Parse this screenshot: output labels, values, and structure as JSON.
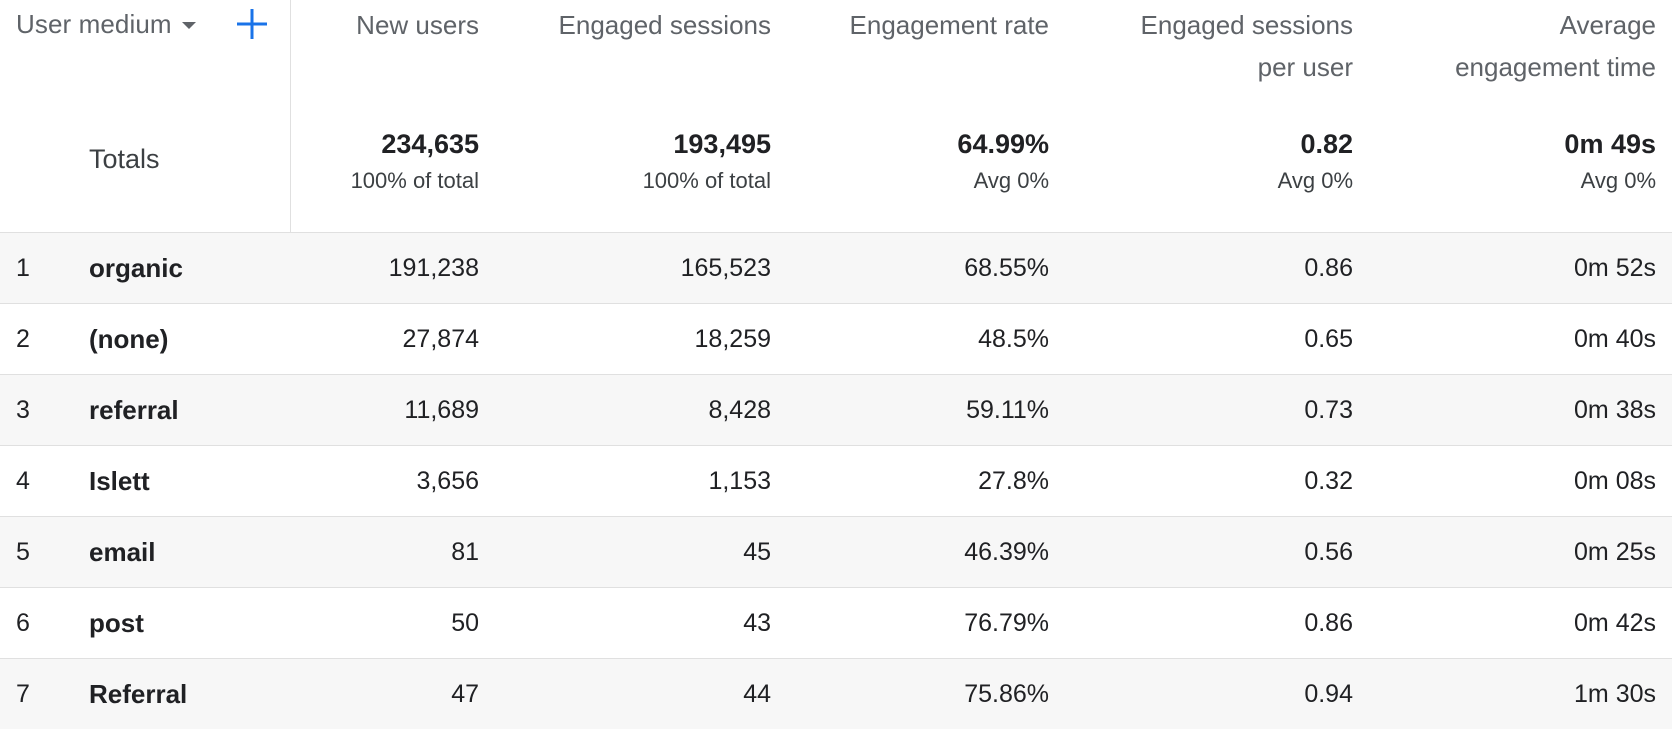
{
  "dimension": {
    "label": "User medium"
  },
  "columns": [
    {
      "key": "new_users",
      "lines": [
        "New users"
      ]
    },
    {
      "key": "engaged_sessions",
      "lines": [
        "Engaged sessions"
      ]
    },
    {
      "key": "engagement_rate",
      "lines": [
        "Engagement rate"
      ]
    },
    {
      "key": "engaged_sessions_per_user",
      "lines": [
        "Engaged sessions",
        "per user"
      ]
    },
    {
      "key": "avg_engagement_time",
      "lines": [
        "Average",
        "engagement time"
      ]
    }
  ],
  "totals": {
    "label": "Totals",
    "values": [
      {
        "value": "234,635",
        "sub": "100% of total"
      },
      {
        "value": "193,495",
        "sub": "100% of total"
      },
      {
        "value": "64.99%",
        "sub": "Avg 0%"
      },
      {
        "value": "0.82",
        "sub": "Avg 0%"
      },
      {
        "value": "0m 49s",
        "sub": "Avg 0%"
      }
    ]
  },
  "rows": [
    {
      "index": "1",
      "medium": "organic",
      "values": [
        "191,238",
        "165,523",
        "68.55%",
        "0.86",
        "0m 52s"
      ]
    },
    {
      "index": "2",
      "medium": "(none)",
      "values": [
        "27,874",
        "18,259",
        "48.5%",
        "0.65",
        "0m 40s"
      ]
    },
    {
      "index": "3",
      "medium": "referral",
      "values": [
        "11,689",
        "8,428",
        "59.11%",
        "0.73",
        "0m 38s"
      ]
    },
    {
      "index": "4",
      "medium": "Islett",
      "values": [
        "3,656",
        "1,153",
        "27.8%",
        "0.32",
        "0m 08s"
      ]
    },
    {
      "index": "5",
      "medium": "email",
      "values": [
        "81",
        "45",
        "46.39%",
        "0.56",
        "0m 25s"
      ]
    },
    {
      "index": "6",
      "medium": "post",
      "values": [
        "50",
        "43",
        "76.79%",
        "0.86",
        "0m 42s"
      ]
    },
    {
      "index": "7",
      "medium": "Referral",
      "values": [
        "47",
        "44",
        "75.86%",
        "0.94",
        "1m 30s"
      ]
    }
  ],
  "colors": {
    "accent": "#1a73e8",
    "header_text": "#5f6368",
    "stripe": "#f7f7f7",
    "divider": "#e0e0e0"
  },
  "icons": {
    "dropdown": "caret-down-icon",
    "add": "add-icon"
  }
}
